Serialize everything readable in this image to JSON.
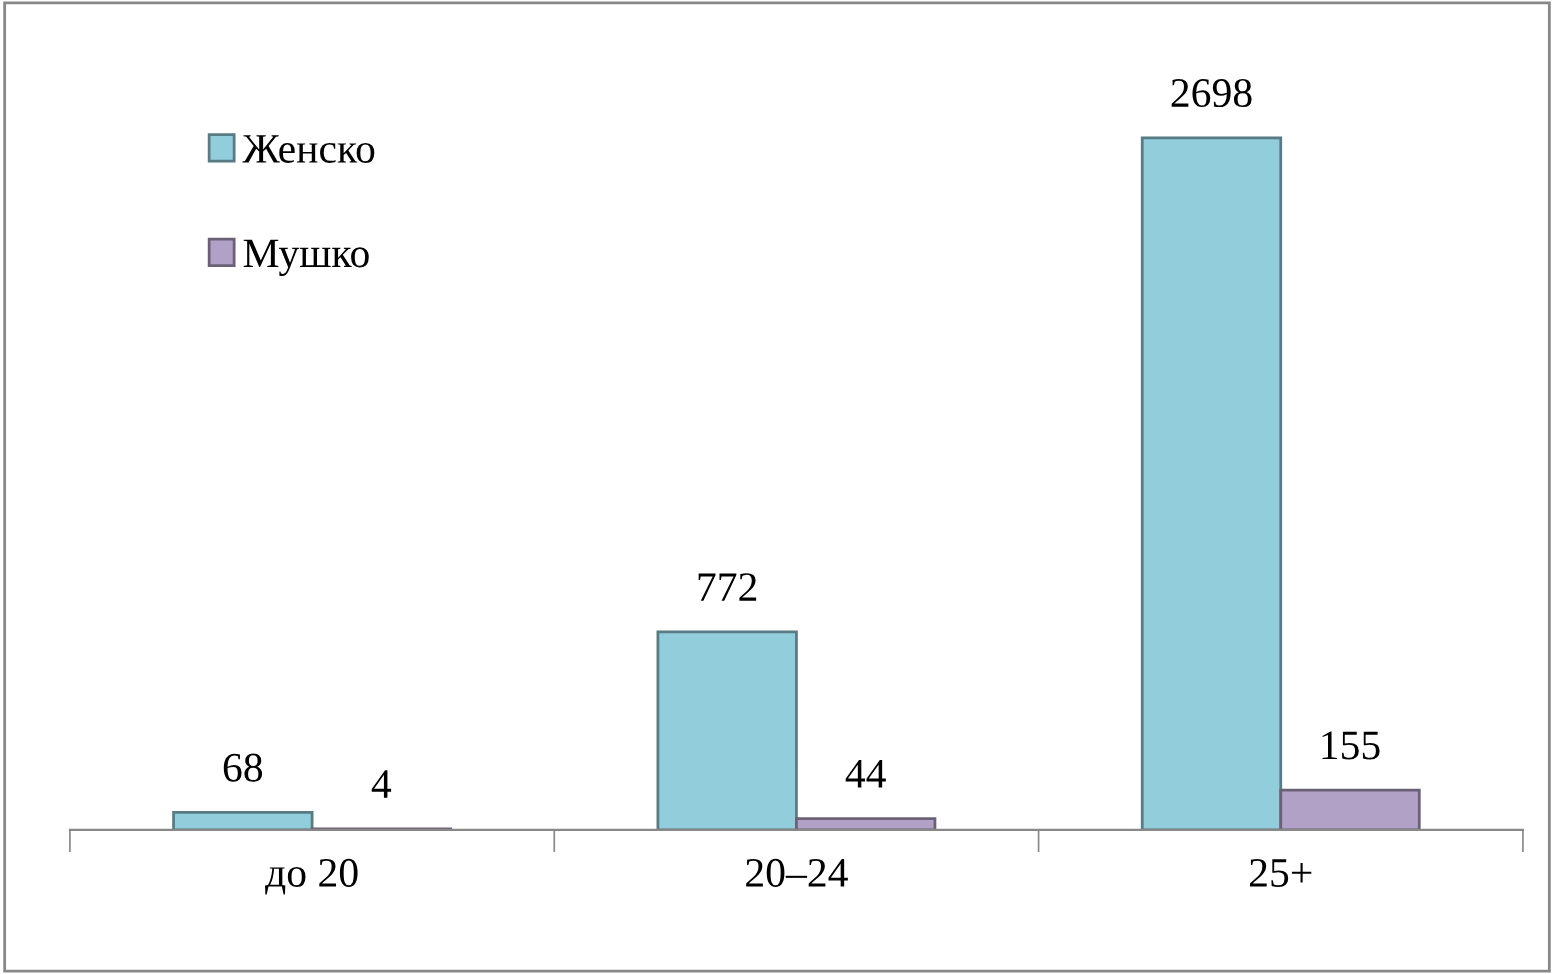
{
  "chart_data": {
    "type": "bar",
    "categories": [
      "до 20",
      "20–24",
      "25+"
    ],
    "series": [
      {
        "name": "Женско",
        "color": "#92cddc",
        "values": [
          68,
          772,
          2698
        ]
      },
      {
        "name": "Мушко",
        "color": "#b2a1c7",
        "values": [
          4,
          44,
          155
        ]
      }
    ],
    "data_labels": true,
    "legend": "top left",
    "grid": false
  }
}
